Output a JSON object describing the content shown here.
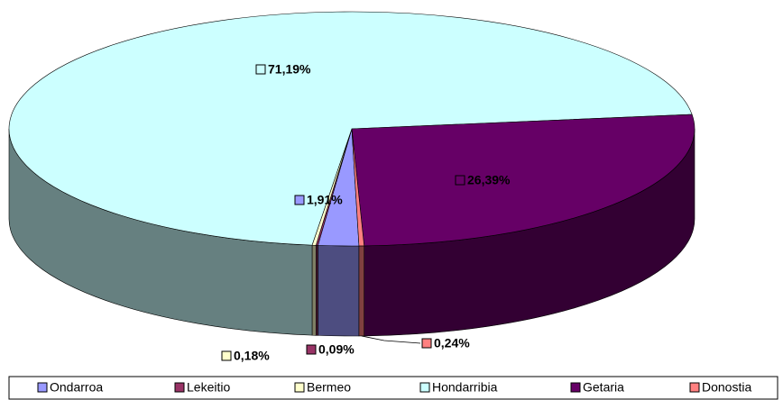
{
  "chart_data": {
    "type": "pie3d",
    "categories": [
      "Ondarroa",
      "Lekeitio",
      "Bermeo",
      "Hondarribia",
      "Getaria",
      "Donostia"
    ],
    "values": [
      1.91,
      0.09,
      0.18,
      71.19,
      26.39,
      0.24
    ],
    "value_labels": [
      "1,91%",
      "0,09%",
      "0,18%",
      "71,19%",
      "26,39%",
      "0,24%"
    ],
    "colors": [
      "#9999ff",
      "#993366",
      "#ffffcc",
      "#ccffff",
      "#660066",
      "#ff8080"
    ],
    "legend": "bottom"
  }
}
